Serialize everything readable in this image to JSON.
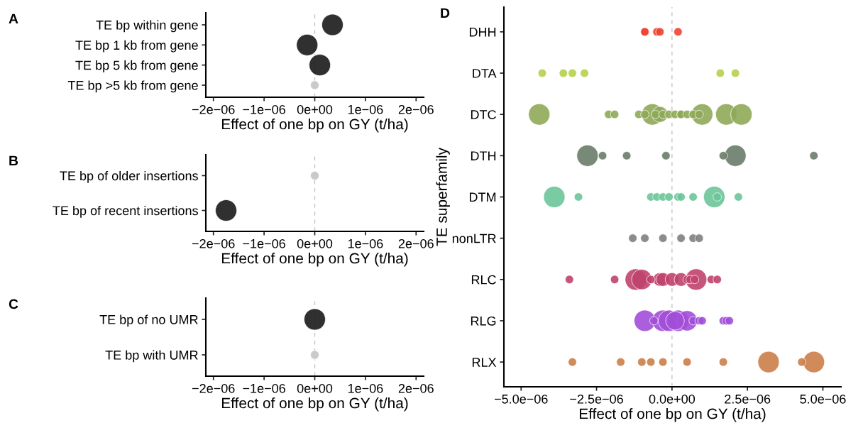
{
  "chart_data": [
    {
      "type": "bubble",
      "title": "A",
      "orientation": "horizontal",
      "xlabel": "Effect of one bp on GY (t/ha)",
      "categories": [
        "TE bp within gene",
        "TE bp 1 kb from gene",
        "TE bp 5 kb from gene",
        "TE bp >5 kb from gene"
      ],
      "values": [
        3.5e-07,
        -1.5e-07,
        1e-07,
        0.0
      ],
      "sizes": [
        1,
        1,
        1,
        0.16
      ],
      "colors": [
        "#1a1a1a",
        "#1a1a1a",
        "#1a1a1a",
        "#c4c4c4"
      ],
      "xlim": [
        -2.15e-06,
        2.15e-06
      ],
      "xticks": [
        {
          "value": -2e-06,
          "label": "−2e−06"
        },
        {
          "value": -1e-06,
          "label": "−1e−06"
        },
        {
          "value": 0,
          "label": "0e+00"
        },
        {
          "value": 1e-06,
          "label": "1e−06"
        },
        {
          "value": 2e-06,
          "label": "2e−06"
        }
      ],
      "ref_lines": [
        {
          "axis": "x",
          "value": 0,
          "color": "#c4c4c4",
          "line_style": "dashed"
        }
      ],
      "marker": "circle",
      "grid": false
    },
    {
      "type": "bubble",
      "title": "B",
      "orientation": "horizontal",
      "xlabel": "Effect of one bp on GY (t/ha)",
      "categories": [
        "TE bp of older insertions",
        "TE bp of recent insertions"
      ],
      "values": [
        0.0,
        -1.75e-06
      ],
      "sizes": [
        0.16,
        1
      ],
      "colors": [
        "#c4c4c4",
        "#1a1a1a"
      ],
      "xlim": [
        -2.15e-06,
        2.15e-06
      ],
      "xticks": [
        {
          "value": -2e-06,
          "label": "−2e−06"
        },
        {
          "value": -1e-06,
          "label": "−1e−06"
        },
        {
          "value": 0,
          "label": "0e+00"
        },
        {
          "value": 1e-06,
          "label": "1e−06"
        },
        {
          "value": 2e-06,
          "label": "2e−06"
        }
      ],
      "ref_lines": [
        {
          "axis": "x",
          "value": 0,
          "color": "#c4c4c4",
          "line_style": "dashed"
        }
      ],
      "marker": "circle",
      "grid": false
    },
    {
      "type": "bubble",
      "title": "C",
      "orientation": "horizontal",
      "xlabel": "Effect of one bp on GY (t/ha)",
      "categories": [
        "TE bp of no UMR",
        "TE bp with UMR"
      ],
      "values": [
        0.0,
        0.0
      ],
      "sizes": [
        1,
        0.16
      ],
      "colors": [
        "#1a1a1a",
        "#c4c4c4"
      ],
      "xlim": [
        -2.15e-06,
        2.15e-06
      ],
      "xticks": [
        {
          "value": -2e-06,
          "label": "−2e−06"
        },
        {
          "value": -1e-06,
          "label": "−1e−06"
        },
        {
          "value": 0,
          "label": "0e+00"
        },
        {
          "value": 1e-06,
          "label": "1e−06"
        },
        {
          "value": 2e-06,
          "label": "2e−06"
        }
      ],
      "ref_lines": [
        {
          "axis": "x",
          "value": 0,
          "color": "#c4c4c4",
          "line_style": "dashed"
        }
      ],
      "marker": "circle",
      "grid": false
    },
    {
      "type": "bubble",
      "title": "D",
      "orientation": "horizontal",
      "xlabel": "Effect of one bp on GY (t/ha)",
      "ylabel": "TE superfamily",
      "categories": [
        "DHH",
        "DTA",
        "DTC",
        "DTH",
        "DTM",
        "nonLTR",
        "RLC",
        "RLG",
        "RLX"
      ],
      "series": [
        {
          "colors": [
            "#ee4433",
            "#b5d04a",
            "#8fa858",
            "#6a7c68",
            "#6cc49a",
            "#7f7f7f",
            "#c0426e",
            "#a24ed8",
            "#cc7d48"
          ],
          "values": [
            -9e-07,
            -4.3e-06,
            -4.4e-06,
            -2.8e-06,
            -3.9e-06,
            -1.3e-06,
            -3.4e-06,
            -9e-07,
            -3.3e-06
          ],
          "sizes": [
            0.15,
            0.15,
            1,
            1,
            1,
            0.15,
            0.15,
            1,
            0.15
          ]
        },
        {
          "colors": [
            "#ee4433",
            "#b5d04a",
            "#8fa858",
            "#6a7c68",
            "#6cc49a",
            "#7f7f7f",
            "#c0426e",
            "#a24ed8",
            "#cc7d48"
          ],
          "values": [
            -5e-07,
            -3.6e-06,
            -2.1e-06,
            -2.3e-06,
            -3.1e-06,
            -9e-07,
            -1.9e-06,
            -6e-07,
            -1.7e-06
          ],
          "sizes": [
            0.15,
            0.15,
            0.15,
            0.15,
            0.15,
            0.15,
            0.15,
            0.15,
            0.15
          ]
        },
        {
          "colors": [
            "#ee4433",
            "#b5d04a",
            "#8fa858",
            "#6a7c68",
            "#6cc49a",
            "#7f7f7f",
            "#c0426e",
            "#a24ed8",
            "#cc7d48"
          ],
          "values": [
            -4e-07,
            -3.3e-06,
            -1.9e-06,
            -1.5e-06,
            -7e-07,
            -3e-07,
            -1.2e-06,
            -3e-07,
            -1e-06
          ],
          "sizes": [
            0.15,
            0.15,
            0.15,
            0.15,
            0.15,
            0.15,
            1,
            1,
            0.15
          ]
        },
        {
          "colors": [
            "#ee4433",
            "#b5d04a",
            "#8fa858",
            "#6a7c68",
            "#6cc49a",
            "#7f7f7f",
            "#c0426e",
            "#a24ed8",
            "#cc7d48"
          ],
          "values": [
            2e-07,
            -2.9e-06,
            -1.1e-06,
            -2e-07,
            -5e-07,
            3e-07,
            -1e-06,
            -1e-07,
            -7e-07
          ],
          "sizes": [
            0.15,
            0.15,
            0.15,
            0.15,
            0.15,
            0.15,
            0.9,
            1,
            0.15
          ]
        },
        {
          "colors": [
            "#ee4433",
            "#b5d04a",
            "#8fa858",
            "#6a7c68",
            "#6cc49a",
            "#7f7f7f",
            "#c0426e",
            "#a24ed8",
            "#cc7d48"
          ],
          "values": [
            -9e-07,
            1.6e-06,
            -9e-07,
            1.7e-06,
            -3e-07,
            7e-07,
            -7e-07,
            1e-07,
            -3e-07
          ],
          "sizes": [
            0.15,
            0.15,
            0.15,
            0.15,
            0.15,
            0.15,
            0.15,
            0.75,
            0.15
          ]
        },
        {
          "colors": [
            "#ee4433",
            "#b5d04a",
            "#8fa858",
            "#6a7c68",
            "#6cc49a",
            "#7f7f7f",
            "#c0426e",
            "#a24ed8",
            "#cc7d48"
          ],
          "values": [
            null,
            2.1e-06,
            -5.5e-07,
            2.1e-06,
            -1e-07,
            9e-07,
            -4e-07,
            2e-07,
            5e-07
          ],
          "sizes": [
            null,
            0.15,
            0.15,
            1,
            0.15,
            0.15,
            0.4,
            1,
            0.15
          ]
        },
        {
          "colors": [
            "#ee4433",
            "#b5d04a",
            "#8fa858",
            "#6a7c68",
            "#6cc49a",
            "#7f7f7f",
            "#c0426e",
            "#a24ed8",
            "#cc7d48"
          ],
          "values": [
            null,
            null,
            -6.5e-07,
            4.7e-06,
            2e-07,
            null,
            -3e-07,
            5e-07,
            1.7e-06
          ],
          "sizes": [
            null,
            null,
            1,
            0.15,
            0.15,
            null,
            0.4,
            0.9,
            0.15
          ]
        },
        {
          "colors": [
            "#ee4433",
            "#b5d04a",
            "#8fa858",
            "#6a7c68",
            "#6cc49a",
            "#7f7f7f",
            "#c0426e",
            "#a24ed8",
            "#cc7d48"
          ],
          "values": [
            null,
            null,
            -4e-07,
            null,
            3e-07,
            null,
            0.0,
            7e-07,
            3.2e-06
          ],
          "sizes": [
            null,
            null,
            0.55,
            null,
            0.15,
            null,
            0.4,
            0.15,
            1
          ]
        },
        {
          "colors": [
            "#ee4433",
            "#b5d04a",
            "#8fa858",
            "#6a7c68",
            "#6cc49a",
            "#7f7f7f",
            "#c0426e",
            "#a24ed8",
            "#cc7d48"
          ],
          "values": [
            null,
            null,
            -3e-07,
            null,
            7e-07,
            null,
            3e-07,
            9e-07,
            4.7e-06
          ],
          "sizes": [
            null,
            null,
            0.15,
            null,
            0.15,
            null,
            0.4,
            0.15,
            1
          ]
        },
        {
          "colors": [
            "#ee4433",
            "#b5d04a",
            "#8fa858",
            "#6a7c68",
            "#6cc49a",
            "#7f7f7f",
            "#c0426e",
            "#a24ed8",
            "#cc7d48"
          ],
          "values": [
            null,
            null,
            -1e-07,
            null,
            1.4e-06,
            null,
            5e-07,
            1e-06,
            4.3e-06
          ],
          "sizes": [
            null,
            null,
            0.15,
            null,
            1,
            null,
            0.15,
            0.15,
            0.15
          ]
        },
        {
          "colors": [
            "#ee4433",
            "#b5d04a",
            "#8fa858",
            "#6a7c68",
            "#6cc49a",
            "#7f7f7f",
            "#c0426e",
            "#a24ed8",
            "#cc7d48"
          ],
          "values": [
            null,
            null,
            1e-07,
            null,
            1.5e-06,
            null,
            6e-07,
            1.7e-06,
            null
          ],
          "sizes": [
            null,
            null,
            0.15,
            null,
            0.15,
            null,
            0.15,
            0.15,
            null
          ]
        },
        {
          "colors": [
            "#ee4433",
            "#b5d04a",
            "#8fa858",
            "#6a7c68",
            "#6cc49a",
            "#7f7f7f",
            "#c0426e",
            "#a24ed8",
            "#cc7d48"
          ],
          "values": [
            null,
            null,
            3e-07,
            null,
            2.2e-06,
            null,
            8e-07,
            1.8e-06,
            null
          ],
          "sizes": [
            null,
            null,
            0.15,
            null,
            0.15,
            null,
            1,
            0.15,
            null
          ]
        },
        {
          "colors": [
            "#ee4433",
            "#b5d04a",
            "#8fa858",
            "#6a7c68",
            "#6cc49a",
            "#7f7f7f",
            "#c0426e",
            "#a24ed8",
            "#cc7d48"
          ],
          "values": [
            null,
            null,
            3e-07,
            null,
            null,
            null,
            7.5e-07,
            1.9e-06,
            null
          ],
          "sizes": [
            null,
            null,
            0.15,
            null,
            null,
            null,
            0.15,
            0.15,
            null
          ]
        },
        {
          "colors": [
            "#ee4433",
            "#b5d04a",
            "#8fa858",
            "#6a7c68",
            "#6cc49a",
            "#7f7f7f",
            "#c0426e",
            "#a24ed8",
            "#cc7d48"
          ],
          "values": [
            null,
            null,
            5e-07,
            null,
            null,
            null,
            1.3e-06,
            null,
            null
          ],
          "sizes": [
            null,
            null,
            0.15,
            null,
            null,
            null,
            0.15,
            null,
            null
          ]
        },
        {
          "colors": [
            "#ee4433",
            "#b5d04a",
            "#8fa858",
            "#6a7c68",
            "#6cc49a",
            "#7f7f7f",
            "#c0426e",
            "#a24ed8",
            "#cc7d48"
          ],
          "values": [
            null,
            null,
            7e-07,
            null,
            null,
            null,
            1.5e-06,
            null,
            null
          ],
          "sizes": [
            null,
            null,
            0.15,
            null,
            null,
            null,
            0.15,
            null,
            null
          ]
        },
        {
          "colors": [
            "#ee4433",
            "#b5d04a",
            "#8fa858",
            "#6a7c68",
            "#6cc49a",
            "#7f7f7f",
            "#c0426e",
            "#a24ed8",
            "#cc7d48"
          ],
          "values": [
            null,
            null,
            9e-07,
            null,
            null,
            null,
            null,
            null,
            null
          ],
          "sizes": [
            null,
            null,
            0.15,
            null,
            null,
            null,
            null,
            null,
            null
          ]
        },
        {
          "colors": [
            "#ee4433",
            "#b5d04a",
            "#8fa858",
            "#6a7c68",
            "#6cc49a",
            "#7f7f7f",
            "#c0426e",
            "#a24ed8",
            "#cc7d48"
          ],
          "values": [
            null,
            null,
            1e-06,
            null,
            null,
            null,
            null,
            null,
            null
          ],
          "sizes": [
            null,
            null,
            1,
            null,
            null,
            null,
            null,
            null,
            null
          ]
        },
        {
          "colors": [
            "#ee4433",
            "#b5d04a",
            "#8fa858",
            "#6a7c68",
            "#6cc49a",
            "#7f7f7f",
            "#c0426e",
            "#a24ed8",
            "#cc7d48"
          ],
          "values": [
            null,
            null,
            1.8e-06,
            null,
            null,
            null,
            null,
            null,
            null
          ],
          "sizes": [
            null,
            null,
            1,
            null,
            null,
            null,
            null,
            null,
            null
          ]
        },
        {
          "colors": [
            "#ee4433",
            "#b5d04a",
            "#8fa858",
            "#6a7c68",
            "#6cc49a",
            "#7f7f7f",
            "#c0426e",
            "#a24ed8",
            "#cc7d48"
          ],
          "values": [
            null,
            null,
            2.3e-06,
            null,
            null,
            null,
            null,
            null,
            null
          ],
          "sizes": [
            null,
            null,
            1,
            null,
            null,
            null,
            null,
            null,
            null
          ]
        }
      ],
      "xlim": [
        -5.57e-06,
        5.6e-06
      ],
      "xticks": [
        {
          "value": -5e-06,
          "label": "−5.0e−06"
        },
        {
          "value": -2.5e-06,
          "label": "−2.5e−06"
        },
        {
          "value": 0,
          "label": "0.0e+00"
        },
        {
          "value": 2.5e-06,
          "label": "2.5e−06"
        },
        {
          "value": 5e-06,
          "label": "5.0e−06"
        }
      ],
      "ref_lines": [
        {
          "axis": "x",
          "value": 0,
          "color": "#c4c4c4",
          "line_style": "dashed"
        }
      ],
      "marker": "circle",
      "grid": false
    }
  ]
}
